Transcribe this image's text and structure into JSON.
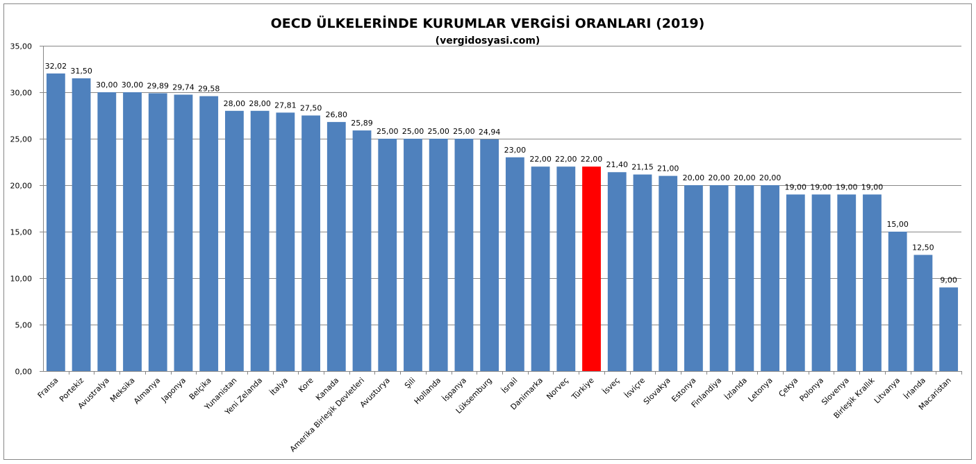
{
  "chart_data": {
    "type": "bar",
    "title": "OECD ÜLKELERİNDE KURUMLAR VERGİSİ ORANLARI (2019)",
    "subtitle": "(vergidosyasi.com)",
    "xlabel": "",
    "ylabel": "",
    "ylim": [
      0,
      35
    ],
    "yticks": [
      0,
      5,
      10,
      15,
      20,
      25,
      30,
      35
    ],
    "ytick_labels": [
      "0,00",
      "5,00",
      "10,00",
      "15,00",
      "20,00",
      "25,00",
      "30,00",
      "35,00"
    ],
    "grid": true,
    "legend": "none",
    "categories": [
      "Fransa",
      "Portekiz",
      "Avustralya",
      "Meksika",
      "Almanya",
      "Japonya",
      "Belçika",
      "Yunanistan",
      "Yeni Zelanda",
      "İtalya",
      "Kore",
      "Kanada",
      "Amerika Birleşik Devletleri",
      "Avusturya",
      "Şili",
      "Hollanda",
      "İspanya",
      "Lüksemburg",
      "İsrail",
      "Danimarka",
      "Norveç",
      "Türkiye",
      "İsveç",
      "İsviçre",
      "Slovakya",
      "Estonya",
      "Finlandiya",
      "İzlanda",
      "Letonya",
      "Çekya",
      "Polonya",
      "Slovenya",
      "Birleşik Krallık",
      "Litvanya",
      "İrlanda",
      "Macaristan"
    ],
    "values": [
      32.02,
      31.5,
      30.0,
      30.0,
      29.89,
      29.74,
      29.58,
      28.0,
      28.0,
      27.81,
      27.5,
      26.8,
      25.89,
      25.0,
      25.0,
      25.0,
      25.0,
      24.94,
      23.0,
      22.0,
      22.0,
      22.0,
      21.4,
      21.15,
      21.0,
      20.0,
      20.0,
      20.0,
      20.0,
      19.0,
      19.0,
      19.0,
      19.0,
      15.0,
      12.5,
      9.0
    ],
    "data_labels": [
      "32,02",
      "31,50",
      "30,00",
      "30,00",
      "29,89",
      "29,74",
      "29,58",
      "28,00",
      "28,00",
      "27,81",
      "27,50",
      "26,80",
      "25,89",
      "25,00",
      "25,00",
      "25,00",
      "25,00",
      "24,94",
      "23,00",
      "22,00",
      "22,00",
      "22,00",
      "21,40",
      "21,15",
      "21,00",
      "20,00",
      "20,00",
      "20,00",
      "20,00",
      "19,00",
      "19,00",
      "19,00",
      "19,00",
      "15,00",
      "12,50",
      "9,00"
    ],
    "highlight_category": "Türkiye",
    "colors": {
      "bar": "#4F81BD",
      "highlight": "#FF0000",
      "grid": "#868686",
      "border": "#868686"
    }
  }
}
